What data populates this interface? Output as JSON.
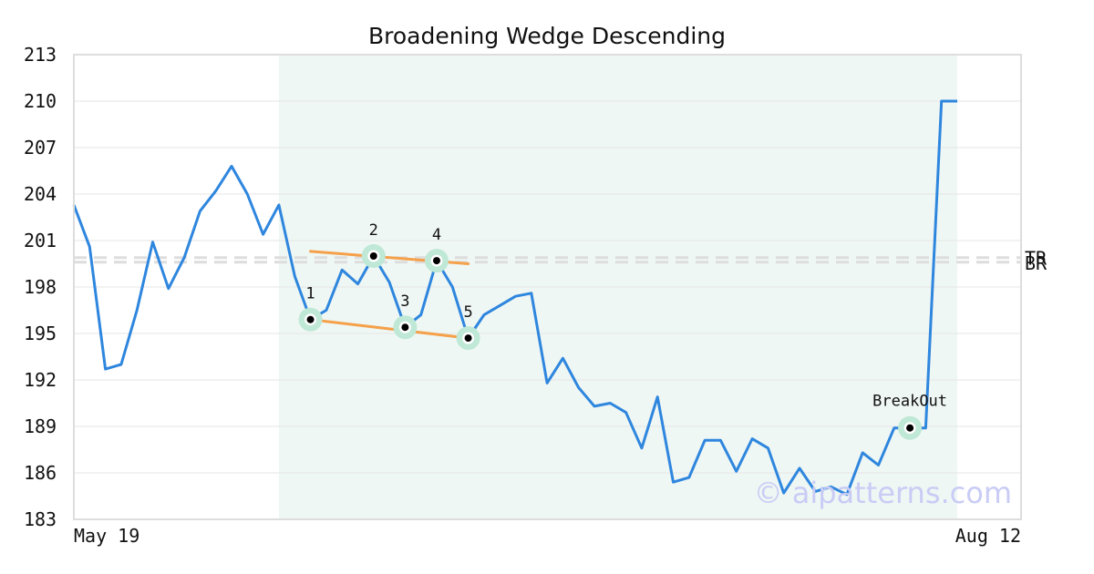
{
  "chart_data": {
    "type": "line",
    "title": "Broadening Wedge Descending",
    "xlabel": "",
    "ylabel": "",
    "x_start_label": "May 19",
    "x_end_label": "Aug 12",
    "ylim": [
      183,
      213
    ],
    "yticks": [
      213,
      210,
      207,
      204,
      201,
      198,
      195,
      192,
      189,
      186,
      183
    ],
    "series": [
      {
        "values": [
          203.3,
          200.6,
          192.7,
          193.0,
          196.5,
          200.9,
          197.9,
          199.9,
          202.9,
          204.2,
          205.8,
          204.0,
          201.4,
          203.3,
          198.7,
          195.9,
          196.5,
          199.1,
          198.2,
          200.0,
          198.3,
          195.4,
          196.2,
          199.7,
          198.0,
          194.7,
          196.2,
          196.8,
          197.4,
          197.6,
          191.8,
          193.4,
          191.5,
          190.3,
          190.5,
          189.9,
          187.6,
          190.9,
          185.4,
          185.7,
          188.1,
          188.1,
          186.1,
          188.2,
          187.6,
          184.7,
          186.3,
          184.8,
          185.1,
          184.6,
          187.3,
          186.5,
          188.9,
          188.9,
          188.9,
          210.0,
          210.0
        ]
      }
    ],
    "pattern_zone": {
      "start_index": 13,
      "end_index": 56,
      "color": "#eff7f4"
    },
    "upper_trendline": {
      "from": [
        15,
        200.3
      ],
      "to": [
        25,
        199.5
      ]
    },
    "lower_trendline": {
      "from": [
        15,
        195.9
      ],
      "to": [
        25,
        194.7
      ]
    },
    "pivots": [
      {
        "label": "1",
        "index": 15,
        "value": 195.9,
        "label_pos": "above"
      },
      {
        "label": "2",
        "index": 19,
        "value": 200.0,
        "label_pos": "above"
      },
      {
        "label": "3",
        "index": 21,
        "value": 195.4,
        "label_pos": "above"
      },
      {
        "label": "4",
        "index": 23,
        "value": 199.7,
        "label_pos": "above"
      },
      {
        "label": "5",
        "index": 25,
        "value": 194.7,
        "label_pos": "above"
      }
    ],
    "breakout": {
      "label": "BreakOut",
      "index": 53,
      "value": 188.9
    },
    "reference_lines": [
      {
        "label": "TR",
        "value": 199.9
      },
      {
        "label": "BR",
        "value": 199.6
      }
    ],
    "watermark": "© aipatterns.com",
    "colors": {
      "line": "#2e86de",
      "trendline": "#f5a04a",
      "marker_halo": "#bfe8d6",
      "reference": "#dddddd",
      "grid": "#e6e6e6",
      "frame": "#dddddd"
    },
    "grid": true
  }
}
